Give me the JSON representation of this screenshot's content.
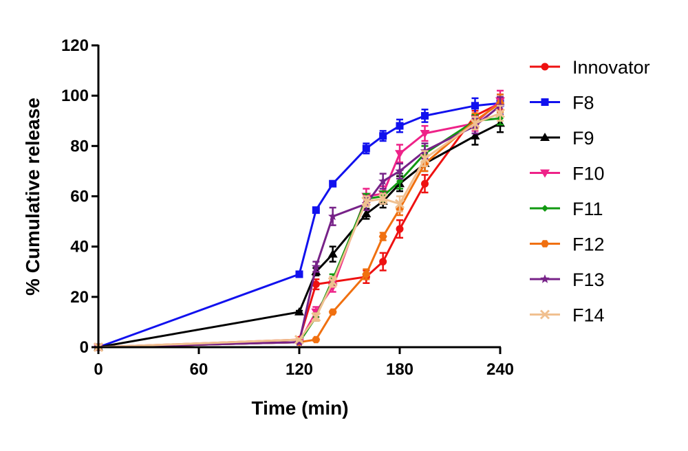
{
  "chart_data": {
    "type": "line",
    "title": "",
    "xlabel": "Time (min)",
    "ylabel": "% Cumulative release",
    "xlim": [
      0,
      240
    ],
    "ylim": [
      0,
      120
    ],
    "xticks": [
      0,
      60,
      120,
      180,
      240
    ],
    "yticks": [
      0,
      20,
      40,
      60,
      80,
      100,
      120
    ],
    "grid": false,
    "legend_position": "right",
    "series": [
      {
        "name": "Innovator",
        "color": "#ee1111",
        "marker": "circle",
        "points": [
          {
            "x": 0,
            "y": 0,
            "err": 0
          },
          {
            "x": 120,
            "y": 3,
            "err": 0.5
          },
          {
            "x": 130,
            "y": 25,
            "err": 2
          },
          {
            "x": 140,
            "y": 26,
            "err": 2
          },
          {
            "x": 160,
            "y": 28,
            "err": 2.5
          },
          {
            "x": 170,
            "y": 34,
            "err": 3.5
          },
          {
            "x": 180,
            "y": 47,
            "err": 3.5
          },
          {
            "x": 195,
            "y": 65,
            "err": 3.5
          },
          {
            "x": 225,
            "y": 92,
            "err": 2
          },
          {
            "x": 240,
            "y": 97,
            "err": 2.5
          }
        ]
      },
      {
        "name": "F8",
        "color": "#1111ee",
        "marker": "square",
        "points": [
          {
            "x": 0,
            "y": 0,
            "err": 0
          },
          {
            "x": 120,
            "y": 29,
            "err": 1
          },
          {
            "x": 130,
            "y": 54.5,
            "err": 1
          },
          {
            "x": 140,
            "y": 65,
            "err": 1
          },
          {
            "x": 160,
            "y": 79,
            "err": 2
          },
          {
            "x": 170,
            "y": 84,
            "err": 2
          },
          {
            "x": 180,
            "y": 88,
            "err": 2.5
          },
          {
            "x": 195,
            "y": 92,
            "err": 2.5
          },
          {
            "x": 225,
            "y": 96,
            "err": 3
          },
          {
            "x": 240,
            "y": 97,
            "err": 3.5
          }
        ]
      },
      {
        "name": "F9",
        "color": "#000000",
        "marker": "triangle",
        "points": [
          {
            "x": 0,
            "y": 0,
            "err": 0
          },
          {
            "x": 120,
            "y": 14,
            "err": 0.5
          },
          {
            "x": 130,
            "y": 30,
            "err": 1.5
          },
          {
            "x": 140,
            "y": 37,
            "err": 3
          },
          {
            "x": 160,
            "y": 53,
            "err": 2
          },
          {
            "x": 170,
            "y": 58,
            "err": 2.5
          },
          {
            "x": 180,
            "y": 65,
            "err": 3
          },
          {
            "x": 195,
            "y": 73,
            "err": 3
          },
          {
            "x": 225,
            "y": 84,
            "err": 3.5
          },
          {
            "x": 240,
            "y": 89,
            "err": 3.5
          }
        ]
      },
      {
        "name": "F10",
        "color": "#ee2288",
        "marker": "triangle-down",
        "points": [
          {
            "x": 0,
            "y": 0,
            "err": 0
          },
          {
            "x": 120,
            "y": 2,
            "err": 0.5
          },
          {
            "x": 130,
            "y": 14,
            "err": 2
          },
          {
            "x": 140,
            "y": 24,
            "err": 2
          },
          {
            "x": 160,
            "y": 60,
            "err": 3
          },
          {
            "x": 170,
            "y": 61,
            "err": 3
          },
          {
            "x": 180,
            "y": 77,
            "err": 3.5
          },
          {
            "x": 195,
            "y": 85,
            "err": 3
          },
          {
            "x": 225,
            "y": 89,
            "err": 3
          },
          {
            "x": 240,
            "y": 98,
            "err": 4
          }
        ]
      },
      {
        "name": "F11",
        "color": "#119911",
        "marker": "diamond",
        "points": [
          {
            "x": 0,
            "y": 0,
            "err": 0
          },
          {
            "x": 120,
            "y": 2,
            "err": 0.5
          },
          {
            "x": 130,
            "y": 12,
            "err": 1.5
          },
          {
            "x": 140,
            "y": 27,
            "err": 2
          },
          {
            "x": 160,
            "y": 59,
            "err": 2
          },
          {
            "x": 170,
            "y": 60,
            "err": 2
          },
          {
            "x": 180,
            "y": 66,
            "err": 3
          },
          {
            "x": 195,
            "y": 77,
            "err": 3
          },
          {
            "x": 225,
            "y": 90,
            "err": 2.5
          },
          {
            "x": 240,
            "y": 91,
            "err": 2.5
          }
        ]
      },
      {
        "name": "F12",
        "color": "#f07010",
        "marker": "hexagon",
        "points": [
          {
            "x": 0,
            "y": 0,
            "err": 0
          },
          {
            "x": 120,
            "y": 2,
            "err": 0.5
          },
          {
            "x": 130,
            "y": 3,
            "err": 0.5
          },
          {
            "x": 140,
            "y": 14,
            "err": 0.5
          },
          {
            "x": 160,
            "y": 29,
            "err": 2
          },
          {
            "x": 170,
            "y": 44,
            "err": 1.5
          },
          {
            "x": 180,
            "y": 55,
            "err": 2.5
          },
          {
            "x": 195,
            "y": 73,
            "err": 3
          },
          {
            "x": 225,
            "y": 90,
            "err": 3
          },
          {
            "x": 240,
            "y": 97,
            "err": 3.5
          }
        ]
      },
      {
        "name": "F13",
        "color": "#772288",
        "marker": "star",
        "points": [
          {
            "x": 0,
            "y": 0,
            "err": 0
          },
          {
            "x": 120,
            "y": 2,
            "err": 0.5
          },
          {
            "x": 130,
            "y": 32,
            "err": 2
          },
          {
            "x": 140,
            "y": 52,
            "err": 3.5
          },
          {
            "x": 160,
            "y": 57,
            "err": 2.5
          },
          {
            "x": 170,
            "y": 66,
            "err": 3
          },
          {
            "x": 180,
            "y": 70,
            "err": 3
          },
          {
            "x": 195,
            "y": 78,
            "err": 3
          },
          {
            "x": 225,
            "y": 88,
            "err": 3
          },
          {
            "x": 240,
            "y": 96,
            "err": 3.5
          }
        ]
      },
      {
        "name": "F14",
        "color": "#f0c090",
        "marker": "x",
        "points": [
          {
            "x": 0,
            "y": 0,
            "err": 0
          },
          {
            "x": 120,
            "y": 3,
            "err": 0.5
          },
          {
            "x": 130,
            "y": 12,
            "err": 1.5
          },
          {
            "x": 140,
            "y": 26,
            "err": 2
          },
          {
            "x": 160,
            "y": 58,
            "err": 2
          },
          {
            "x": 170,
            "y": 59,
            "err": 2
          },
          {
            "x": 180,
            "y": 57,
            "err": 3
          },
          {
            "x": 195,
            "y": 75,
            "err": 3
          },
          {
            "x": 225,
            "y": 89,
            "err": 2.5
          },
          {
            "x": 240,
            "y": 93,
            "err": 3
          }
        ]
      }
    ]
  }
}
